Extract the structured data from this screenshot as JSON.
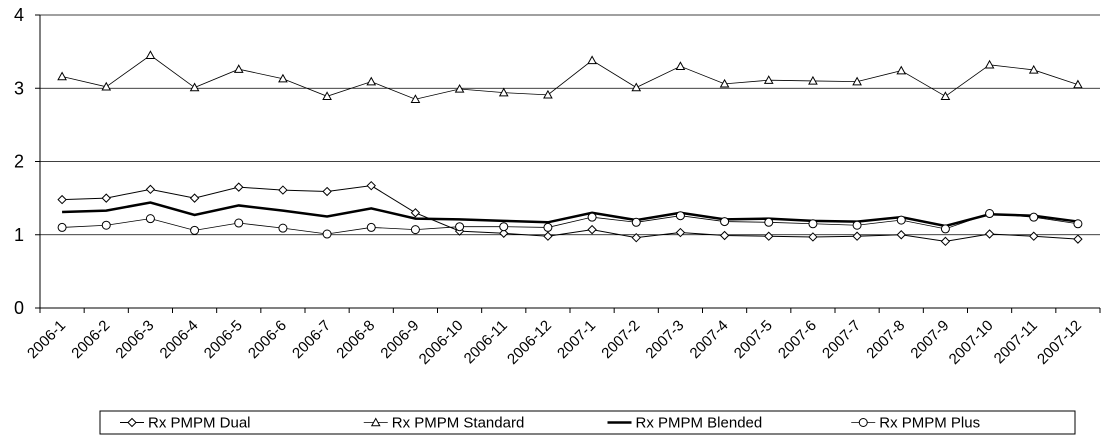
{
  "chart_data": {
    "type": "line",
    "categories": [
      "2006-1",
      "2006-2",
      "2006-3",
      "2006-4",
      "2006-5",
      "2006-6",
      "2006-7",
      "2006-8",
      "2006-9",
      "2006-10",
      "2006-11",
      "2006-12",
      "2007-1",
      "2007-2",
      "2007-3",
      "2007-4",
      "2007-5",
      "2007-6",
      "2007-7",
      "2007-8",
      "2007-9",
      "2007-10",
      "2007-11",
      "2007-12"
    ],
    "series": [
      {
        "name": "Rx PMPM Dual",
        "color": "#000000",
        "marker": "diamond",
        "line_width": 1,
        "values": [
          1.48,
          1.5,
          1.62,
          1.5,
          1.65,
          1.61,
          1.59,
          1.67,
          1.3,
          1.05,
          1.02,
          0.98,
          1.07,
          0.96,
          1.03,
          0.99,
          0.98,
          0.97,
          0.98,
          1.0,
          0.91,
          1.01,
          0.98,
          0.94
        ]
      },
      {
        "name": "Rx PMPM Standard",
        "color": "#000000",
        "marker": "triangle",
        "line_width": 0.8,
        "values": [
          3.16,
          3.02,
          3.45,
          3.01,
          3.26,
          3.13,
          2.89,
          3.09,
          2.85,
          2.99,
          2.94,
          2.91,
          3.38,
          3.01,
          3.3,
          3.06,
          3.11,
          3.1,
          3.09,
          3.24,
          2.89,
          3.32,
          3.25,
          3.05
        ]
      },
      {
        "name": "Rx PMPM Blended",
        "color": "#000000",
        "marker": "none",
        "line_width": 2.5,
        "values": [
          1.31,
          1.33,
          1.44,
          1.27,
          1.4,
          1.33,
          1.25,
          1.36,
          1.22,
          1.21,
          1.19,
          1.17,
          1.3,
          1.2,
          1.3,
          1.21,
          1.22,
          1.19,
          1.18,
          1.24,
          1.12,
          1.28,
          1.26,
          1.18
        ]
      },
      {
        "name": "Rx PMPM Plus",
        "color": "#000000",
        "marker": "circle",
        "line_width": 0.8,
        "values": [
          1.1,
          1.13,
          1.22,
          1.06,
          1.16,
          1.09,
          1.01,
          1.1,
          1.07,
          1.11,
          1.11,
          1.1,
          1.24,
          1.17,
          1.26,
          1.18,
          1.17,
          1.15,
          1.13,
          1.2,
          1.08,
          1.29,
          1.24,
          1.15
        ]
      }
    ],
    "ylim": [
      0,
      4
    ],
    "yticks": [
      0,
      1,
      2,
      3,
      4
    ],
    "grid": true,
    "legend": "bottom"
  }
}
